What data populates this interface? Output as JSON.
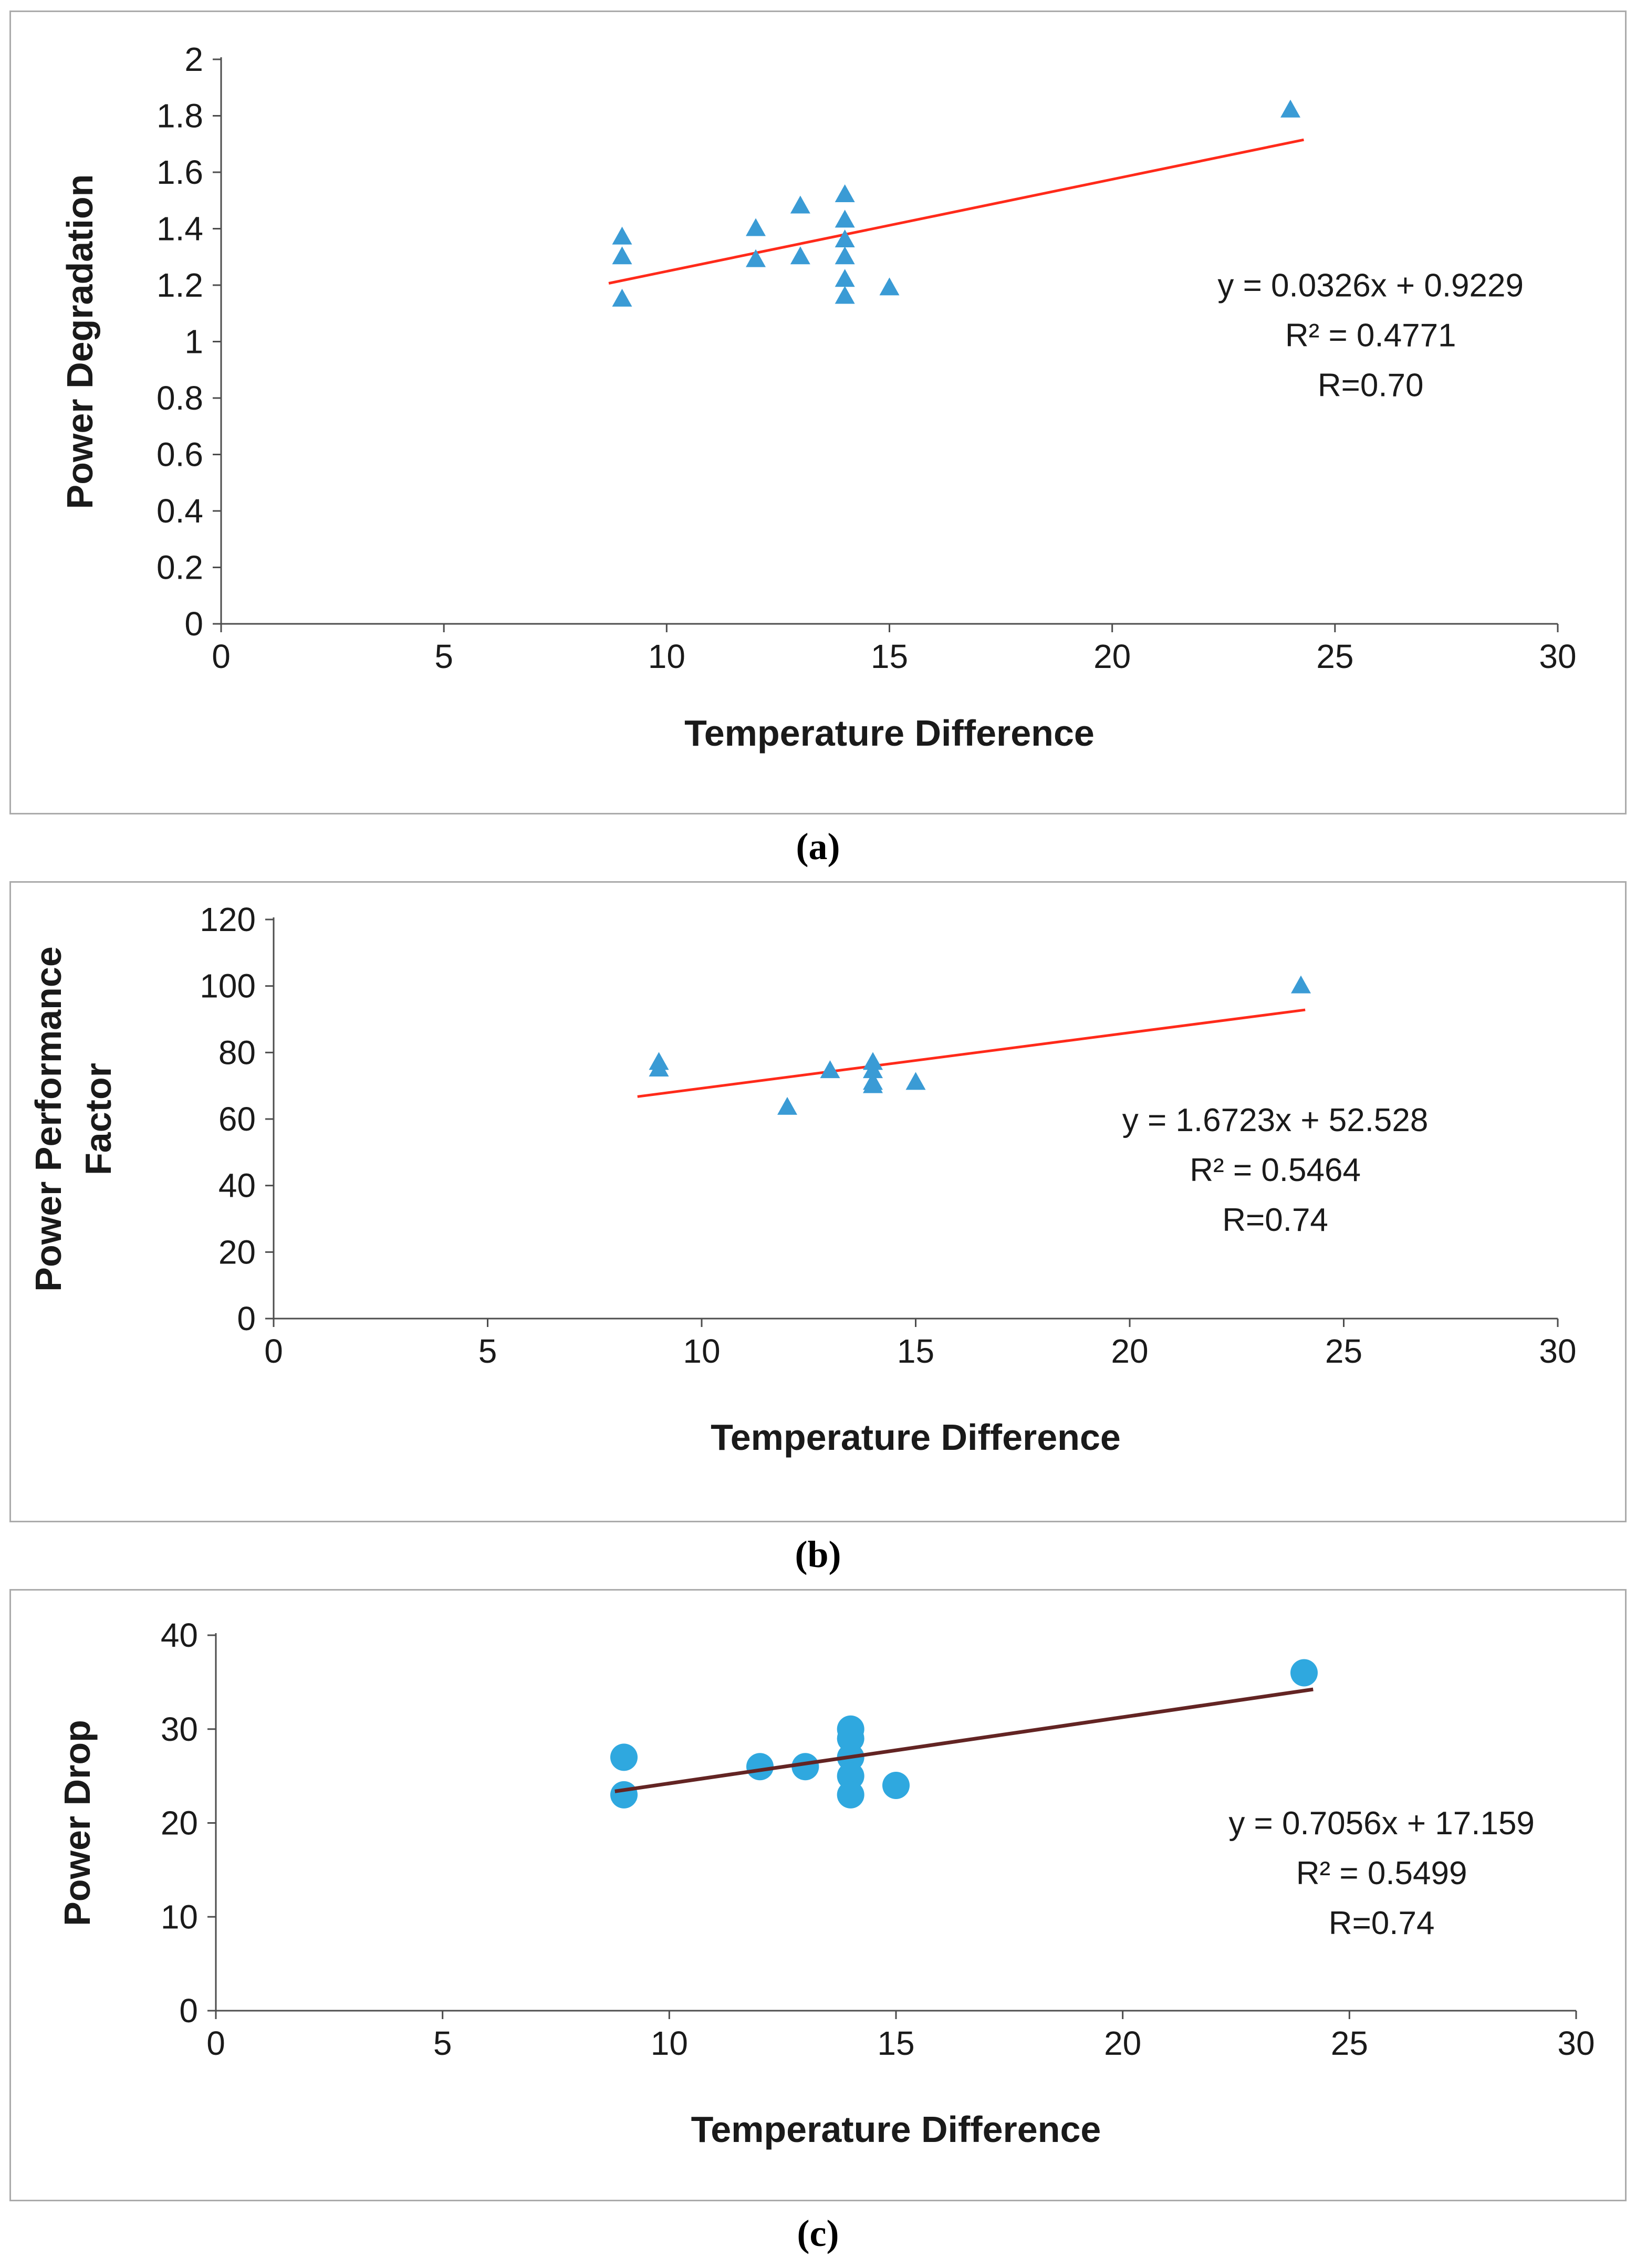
{
  "captions": [
    "(a)",
    "(b)",
    "(c)"
  ],
  "colors": {
    "marker_blue_triangle": "#3A9BD5",
    "marker_blue_circle": "#2FA8DF",
    "trend_red": "#FF2A1A",
    "trend_dark_red": "#632423",
    "axis": "#4D4D4D",
    "text": "#1a1a1a",
    "panel_border": "#ABABAB"
  },
  "chart_data": [
    {
      "id": "a",
      "type": "scatter",
      "marker": "triangle",
      "marker_color": "#3A9BD5",
      "xlabel": "Temperature Difference",
      "ylabel_lines": [
        "Power Degradation"
      ],
      "xlim": [
        0,
        30
      ],
      "xstep": 5,
      "ylim": [
        0,
        2
      ],
      "ystep": 0.2,
      "grid": false,
      "legend": "none",
      "points": [
        [
          9,
          1.37
        ],
        [
          9,
          1.3
        ],
        [
          9,
          1.15
        ],
        [
          12,
          1.4
        ],
        [
          12,
          1.29
        ],
        [
          13,
          1.48
        ],
        [
          13,
          1.3
        ],
        [
          14,
          1.52
        ],
        [
          14,
          1.43
        ],
        [
          14,
          1.36
        ],
        [
          14,
          1.3
        ],
        [
          14,
          1.22
        ],
        [
          14,
          1.16
        ],
        [
          15,
          1.19
        ],
        [
          24,
          1.82
        ]
      ],
      "trendline": {
        "slope": 0.0326,
        "intercept": 0.9229,
        "x_start": 8.7,
        "x_end": 24.3,
        "color": "#FF2A1A"
      },
      "annotation": {
        "lines": [
          "y = 0.0326x + 0.9229",
          "R² = 0.4771",
          "R=0.70"
        ],
        "cx": 0.86,
        "cy": 0.42
      }
    },
    {
      "id": "b",
      "type": "scatter",
      "marker": "triangle",
      "marker_color": "#3A9BD5",
      "xlabel": "Temperature Difference",
      "ylabel_lines": [
        "Power Performance",
        "Factor"
      ],
      "xlim": [
        0,
        30
      ],
      "xstep": 5,
      "ylim": [
        0,
        120
      ],
      "ystep": 20,
      "grid": false,
      "legend": "none",
      "points": [
        [
          9,
          77
        ],
        [
          9,
          75
        ],
        [
          12,
          63.5
        ],
        [
          13,
          74.5
        ],
        [
          14,
          77
        ],
        [
          14,
          74.5
        ],
        [
          14,
          71
        ],
        [
          14,
          70
        ],
        [
          15,
          71
        ],
        [
          24,
          100
        ]
      ],
      "trendline": {
        "slope": 1.6723,
        "intercept": 52.528,
        "x_start": 8.5,
        "x_end": 24.1,
        "color": "#FF2A1A"
      },
      "annotation": {
        "lines": [
          "y = 1.6723x + 52.528",
          "R² = 0.5464",
          "R=0.74"
        ],
        "cx": 0.78,
        "cy": 0.53
      }
    },
    {
      "id": "c",
      "type": "scatter",
      "marker": "circle",
      "marker_color": "#2FA8DF",
      "xlabel": "Temperature Difference",
      "ylabel_lines": [
        "Power Drop"
      ],
      "xlim": [
        0,
        30
      ],
      "xstep": 5,
      "ylim": [
        0,
        40
      ],
      "ystep": 10,
      "grid": false,
      "legend": "none",
      "points": [
        [
          9,
          27
        ],
        [
          9,
          23
        ],
        [
          12,
          26
        ],
        [
          13,
          26
        ],
        [
          14,
          30
        ],
        [
          14,
          29
        ],
        [
          14,
          27
        ],
        [
          14,
          25
        ],
        [
          14,
          23
        ],
        [
          15,
          24
        ],
        [
          24,
          36
        ]
      ],
      "trendline": {
        "slope": 0.7056,
        "intercept": 17.159,
        "x_start": 8.8,
        "x_end": 24.2,
        "color": "#632423"
      },
      "annotation": {
        "lines": [
          "y = 0.7056x + 17.159",
          "R² = 0.5499",
          "R=0.74"
        ],
        "cx": 0.857,
        "cy": 0.53
      }
    }
  ]
}
